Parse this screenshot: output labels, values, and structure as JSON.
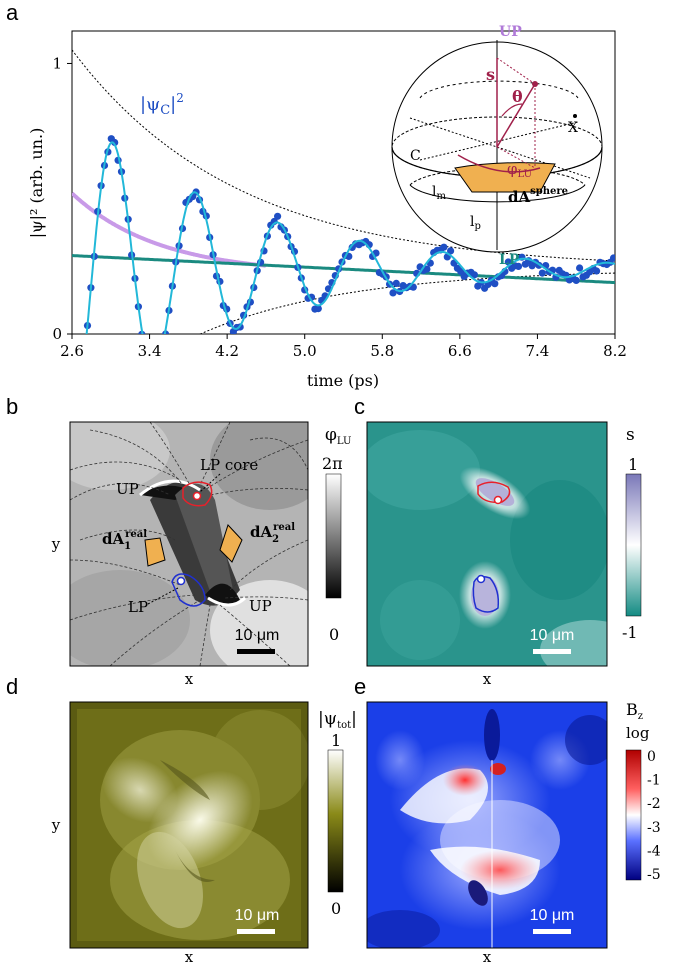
{
  "panels": {
    "a": {
      "letter": "a"
    },
    "b": {
      "letter": "b",
      "xlabel": "x",
      "ylabel": "y",
      "scale_bar": "10 μm",
      "colorbar": {
        "title": "φ",
        "title_sub": "LU",
        "max": "2π",
        "min": "0"
      },
      "labels": {
        "up_top": "UP",
        "lp_core": "LP core",
        "dA1": "dA",
        "dA1_sub": "1",
        "dA1_sup": "real",
        "dA2": "dA",
        "dA2_sub": "2",
        "dA2_sup": "real",
        "lp": "LP",
        "up_bottom": "UP"
      }
    },
    "c": {
      "letter": "c",
      "xlabel": "x",
      "scale_bar": "10 μm",
      "colorbar": {
        "title": "s",
        "max": "1",
        "min": "-1"
      }
    },
    "d": {
      "letter": "d",
      "xlabel": "x",
      "ylabel": "y",
      "scale_bar": "10 μm",
      "colorbar": {
        "title": "|ψ",
        "title_sub": "tot",
        "title_end": "|",
        "max": "1",
        "min": "0"
      }
    },
    "e": {
      "letter": "e",
      "xlabel": "x",
      "scale_bar": "10 μm",
      "colorbar": {
        "title": "B",
        "title_sub": "z",
        "subtitle": "log",
        "ticks": [
          "0",
          "-1",
          "-2",
          "-3",
          "-4",
          "-5"
        ]
      }
    }
  },
  "sphere": {
    "up": "UP",
    "lp": "LP",
    "s": "s",
    "theta": "θ",
    "phi": "φ",
    "phi_sub": "LU",
    "x": "X",
    "c": "C",
    "lm": "l",
    "lm_sub": "m",
    "lp_label": "l",
    "lp_sub": "p",
    "dA": "dA",
    "dA_sup": "sphere"
  },
  "colors": {
    "data_points": "#1f4fc4",
    "fit": "#22b8d8",
    "envelope": "#000000",
    "purple": "#c89ae8",
    "teal": "#1a8a80",
    "lp_core": "#e8202a",
    "lp": "#2030d0",
    "patch": "#f0b050",
    "up_label": "#b07ad8",
    "lp_label": "#1a8a80"
  },
  "chart_data": {
    "type": "scatter",
    "title": "",
    "xlabel": "time (ps)",
    "ylabel": "|ψ|² (arb. un.)",
    "xlim": [
      2.6,
      8.2
    ],
    "ylim": [
      0,
      1.12
    ],
    "xticks": [
      "2.6",
      "3.4",
      "4.2",
      "5.0",
      "5.8",
      "6.6",
      "7.4",
      "8.2"
    ],
    "yticks": [
      "0",
      "1"
    ],
    "legend_label": "|ψC|²",
    "fit_params": {
      "baseline": 0.24,
      "amplitude": 0.6,
      "decay": 1.7,
      "period": 0.85,
      "t0": 2.6
    },
    "series": [
      {
        "name": "|ψC|²",
        "kind": "points",
        "x": [],
        "y": []
      },
      {
        "kind": "fit"
      },
      {
        "kind": "envelope-upper"
      },
      {
        "kind": "envelope-lower"
      },
      {
        "kind": "purple-decay",
        "a0": 0.52,
        "a_inf": 0.22,
        "tau": 0.9
      },
      {
        "kind": "teal-line",
        "y0": 0.29,
        "y1": 0.19
      }
    ]
  }
}
